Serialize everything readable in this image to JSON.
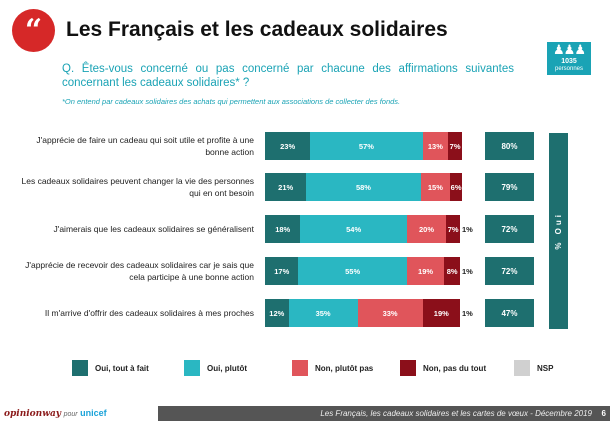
{
  "header": {
    "quote_glyph": "“",
    "title": "Les Français et les cadeaux solidaires",
    "question": "Q. Êtes-vous concerné ou pas concerné par chacune des affirmations suivantes concernant les cadeaux solidaires* ?",
    "footnote": "*On entend par cadeaux solidaires des achats qui permettent aux associations de collecter des fonds."
  },
  "sample": {
    "people_glyph": "♟♟♟",
    "n": "1035",
    "unit": "personnes"
  },
  "oui_label": "% Oui",
  "colors": {
    "oui_tout_a_fait": "#1e6f6f",
    "oui_plutot": "#2ab7c2",
    "non_plutot_pas": "#e0555b",
    "non_pas_du_tout": "#8b0f1a",
    "nsp": "#d0d0d0"
  },
  "chart_data": {
    "type": "bar",
    "orientation": "horizontal-stacked",
    "categories": [
      "J'apprécie de faire un cadeau qui soit utile et profite à une bonne action",
      "Les cadeaux solidaires peuvent changer la vie des personnes qui en ont besoin",
      "J'aimerais que les cadeaux solidaires se généralisent",
      "J'apprécie de recevoir des cadeaux solidaires car je sais que cela participe à une bonne action",
      "Il m'arrive d'offrir des cadeaux solidaires à mes proches"
    ],
    "series": [
      {
        "name": "Oui, tout à fait",
        "values": [
          23,
          21,
          18,
          17,
          12
        ]
      },
      {
        "name": "Oui, plutôt",
        "values": [
          57,
          58,
          54,
          55,
          35
        ]
      },
      {
        "name": "Non, plutôt pas",
        "values": [
          13,
          15,
          20,
          19,
          33
        ]
      },
      {
        "name": "Non, pas du tout",
        "values": [
          7,
          6,
          7,
          8,
          19
        ]
      },
      {
        "name": "NSP",
        "values": [
          0,
          0,
          1,
          1,
          1
        ]
      }
    ],
    "totals_oui": [
      "80%",
      "79%",
      "72%",
      "72%",
      "47%"
    ],
    "segment_labels": [
      [
        "23%",
        "57%",
        "13%",
        "7%",
        ""
      ],
      [
        "21%",
        "58%",
        "15%",
        "6%",
        ""
      ],
      [
        "18%",
        "54%",
        "20%",
        "7%",
        "1%"
      ],
      [
        "17%",
        "55%",
        "19%",
        "8%",
        "1%"
      ],
      [
        "12%",
        "35%",
        "33%",
        "19%",
        "1%"
      ]
    ],
    "legend_position": "bottom",
    "xlim": [
      0,
      100
    ]
  },
  "footer": {
    "brand": "opinionway",
    "pour": "pour",
    "partner": "unicef",
    "text": "Les Français, les cadeaux solidaires et les cartes de vœux - Décembre 2019",
    "page": "6"
  }
}
